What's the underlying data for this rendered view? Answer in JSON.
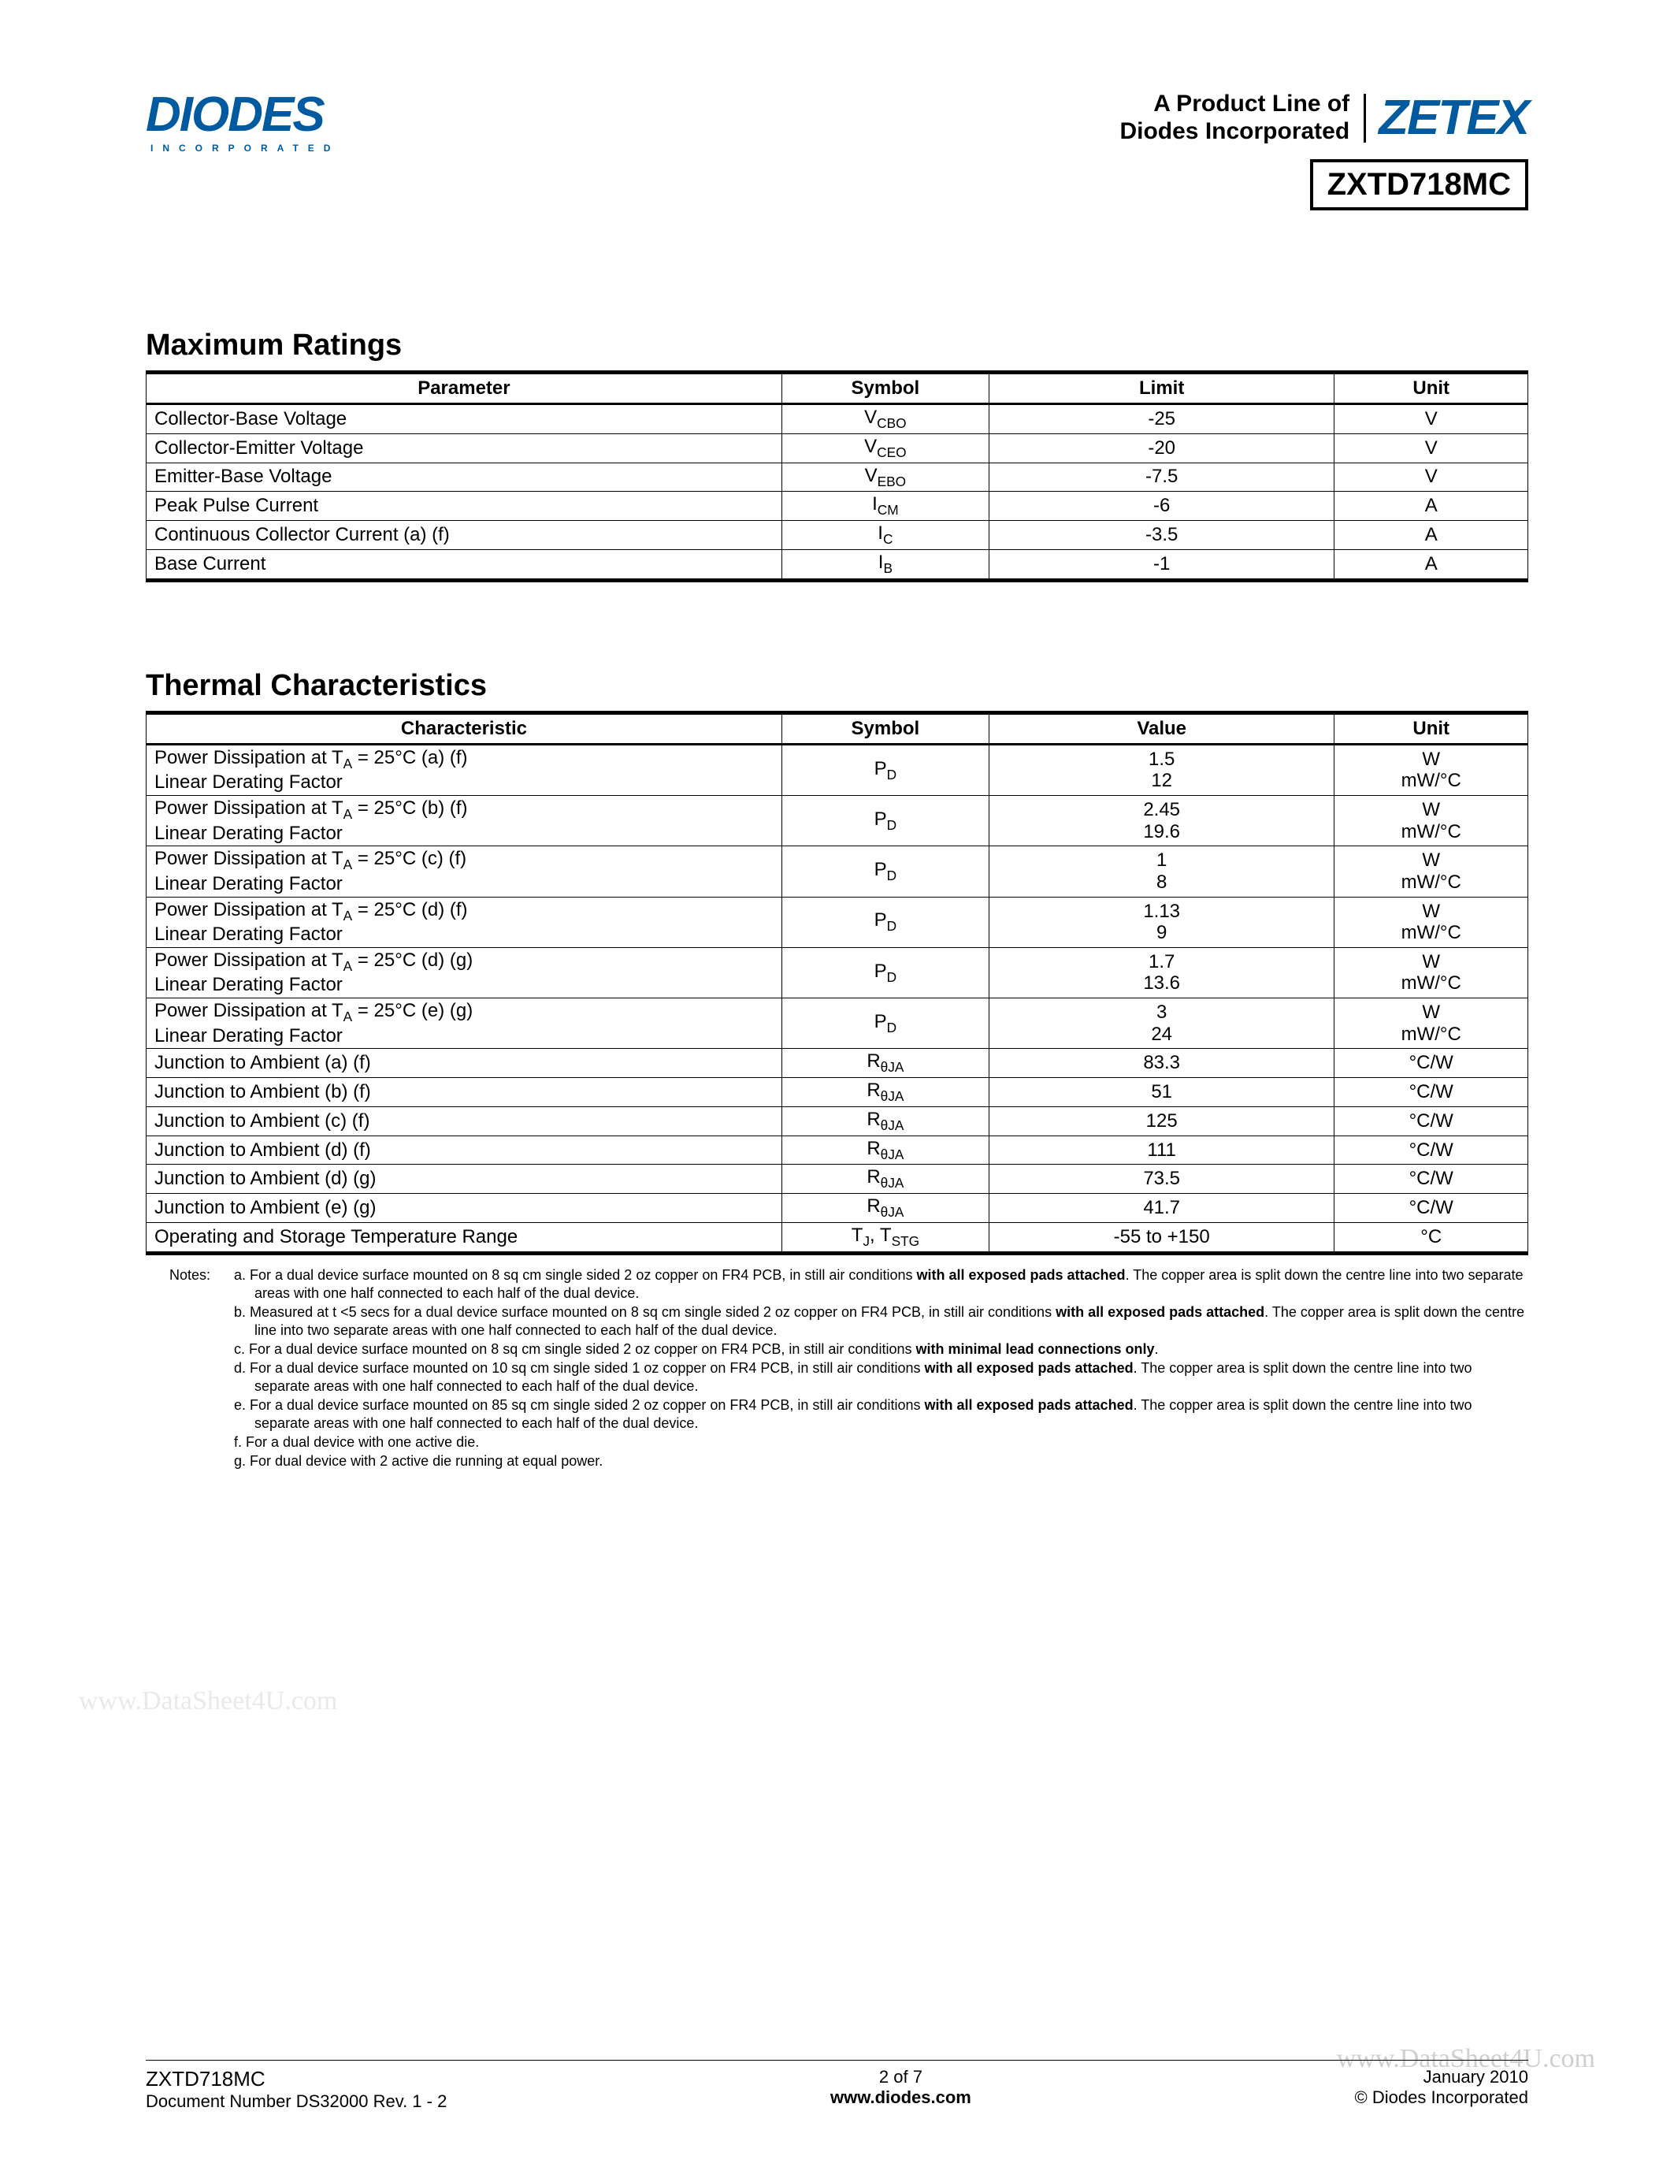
{
  "header": {
    "diodes_logo": "DIODES",
    "diodes_sub": "INCORPORATED",
    "tagline_line1": "A Product Line of",
    "tagline_line2": "Diodes Incorporated",
    "zetex_logo": "ZETEX",
    "part_number": "ZXTD718MC"
  },
  "maxratings": {
    "title": "Maximum Ratings",
    "head": {
      "param": "Parameter",
      "symbol": "Symbol",
      "limit": "Limit",
      "unit": "Unit"
    },
    "rows": [
      {
        "param": "Collector-Base Voltage",
        "sym": "V",
        "sub": "CBO",
        "limit": "-25",
        "unit": "V"
      },
      {
        "param": "Collector-Emitter Voltage",
        "sym": "V",
        "sub": "CEO",
        "limit": "-20",
        "unit": "V"
      },
      {
        "param": "Emitter-Base Voltage",
        "sym": "V",
        "sub": "EBO",
        "limit": "-7.5",
        "unit": "V"
      },
      {
        "param": "Peak Pulse Current",
        "sym": "I",
        "sub": "CM",
        "limit": "-6",
        "unit": "A"
      },
      {
        "param": "Continuous Collector Current (a) (f)",
        "sym": "I",
        "sub": "C",
        "limit": "-3.5",
        "unit": "A"
      },
      {
        "param": "Base Current",
        "sym": "I",
        "sub": "B",
        "limit": "-1",
        "unit": "A"
      }
    ]
  },
  "thermal": {
    "title": "Thermal Characteristics",
    "head": {
      "param": "Characteristic",
      "symbol": "Symbol",
      "value": "Value",
      "unit": "Unit"
    },
    "pd_label1_prefix": "Power Dissipation at T",
    "pd_label1_sub": "A",
    "pd_label1_suffix_eq": " = 25°C ",
    "pd_label2": "Linear Derating Factor",
    "pd_rows": [
      {
        "cond": "(a) (f)",
        "v1": "1.5",
        "v2": "12",
        "u1": "W",
        "u2": "mW/°C"
      },
      {
        "cond": "(b) (f)",
        "v1": "2.45",
        "v2": "19.6",
        "u1": "W",
        "u2": "mW/°C"
      },
      {
        "cond": "(c) (f)",
        "v1": "1",
        "v2": "8",
        "u1": "W",
        "u2": "mW/°C"
      },
      {
        "cond": "(d) (f)",
        "v1": "1.13",
        "v2": "9",
        "u1": "W",
        "u2": "mW/°C"
      },
      {
        "cond": "(d) (g)",
        "v1": "1.7",
        "v2": "13.6",
        "u1": "W",
        "u2": "mW/°C"
      },
      {
        "cond": "(e) (g)",
        "v1": "3",
        "v2": "24",
        "u1": "W",
        "u2": "mW/°C"
      }
    ],
    "rja_label_prefix": "Junction to Ambient ",
    "rja_sym": "R",
    "rja_sub": "θJA",
    "rja_rows": [
      {
        "cond": "(a) (f)",
        "val": "83.3",
        "unit": "°C/W"
      },
      {
        "cond": "(b) (f)",
        "val": "51",
        "unit": "°C/W"
      },
      {
        "cond": "(c) (f)",
        "val": "125",
        "unit": "°C/W"
      },
      {
        "cond": "(d) (f)",
        "val": "111",
        "unit": "°C/W"
      },
      {
        "cond": "(d) (g)",
        "val": "73.5",
        "unit": "°C/W"
      },
      {
        "cond": "(e) (g)",
        "val": "41.7",
        "unit": "°C/W"
      }
    ],
    "oprow": {
      "param": "Operating and Storage Temperature Range",
      "sym1": "T",
      "sub1": "J",
      "comma": ", ",
      "sym2": "T",
      "sub2": "STG",
      "value": "-55 to +150",
      "unit": "°C"
    }
  },
  "notes": {
    "label": "Notes:",
    "items": [
      {
        "prefix": "a. For a dual device surface mounted on 8 sq cm single sided 2 oz copper on FR4 PCB, in still air conditions ",
        "bold": "with all exposed pads attached",
        "suffix": ". The copper area is split down the centre line into two separate areas with one half connected to each half of the dual device."
      },
      {
        "prefix": "b. Measured at t <5 secs for a dual device surface mounted on 8 sq cm single sided 2 oz copper on FR4 PCB, in still air conditions ",
        "bold": "with all exposed pads attached",
        "suffix": ". The copper area is split down the centre line into two separate areas with one half connected to each half of the dual device."
      },
      {
        "prefix": "c. For a dual device surface mounted on 8 sq cm single sided 2 oz copper on FR4 PCB, in still air conditions ",
        "bold": "with minimal lead connections only",
        "suffix": "."
      },
      {
        "prefix": "d. For a dual device surface mounted on 10 sq cm single sided 1 oz copper on FR4 PCB, in still air conditions ",
        "bold": "with all exposed pads attached",
        "suffix": ". The copper area is split down the centre line into two separate areas with one half connected to each half of the dual device."
      },
      {
        "prefix": "e. For a dual device surface mounted on 85 sq cm single sided 2 oz copper on FR4 PCB, in still air conditions ",
        "bold": "with all exposed pads attached",
        "suffix": ". The copper area is split down the centre line into two separate areas with one half connected to each half of the dual device."
      },
      {
        "prefix": "f. For a dual device with one active die.",
        "bold": "",
        "suffix": ""
      },
      {
        "prefix": "g. For dual device with 2 active die running at equal power.",
        "bold": "",
        "suffix": ""
      }
    ]
  },
  "watermark": {
    "left": "www.DataSheet4U.com",
    "right": "www.DataSheet4U.com"
  },
  "footer": {
    "part": "ZXTD718MC",
    "docnum": "Document Number DS32000 Rev. 1 - 2",
    "page": "2 of 7",
    "url": "www.diodes.com",
    "date": "January 2010",
    "cr": "© Diodes Incorporated"
  }
}
